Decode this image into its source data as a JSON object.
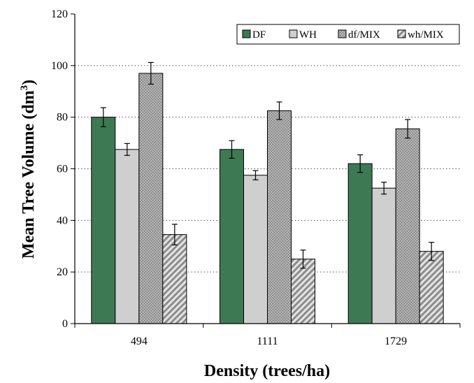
{
  "chart_data": {
    "type": "bar",
    "xlabel": "Density (trees/ha)",
    "ylabel_main": "Mean Tree Volume (dm",
    "ylabel_sup": "3",
    "ylabel_close": ")",
    "ylim": [
      0,
      120
    ],
    "yticks": [
      "0",
      "20",
      "40",
      "60",
      "80",
      "100",
      "120"
    ],
    "categories": [
      "494",
      "1111",
      "1729"
    ],
    "grid": "horizontal dotted",
    "legend_position": "top-right",
    "series": [
      {
        "name": "DF",
        "values": [
          80,
          67.5,
          62
        ],
        "errors": [
          3.7,
          3.4,
          3.4
        ],
        "color": "#3d7a54"
      },
      {
        "name": "WH",
        "values": [
          67.5,
          57.5,
          52.5
        ],
        "errors": [
          2.3,
          1.8,
          2.3
        ],
        "color": "#cfcfcf"
      },
      {
        "name": "df/MIX",
        "values": [
          97,
          82.5,
          75.5
        ],
        "errors": [
          4.2,
          3.4,
          3.6
        ],
        "color": "#9a9a9a"
      },
      {
        "name": "wh/MIX",
        "values": [
          34.5,
          25,
          28
        ],
        "errors": [
          4.0,
          3.5,
          3.5
        ],
        "color": "#b8b8b8"
      }
    ]
  }
}
